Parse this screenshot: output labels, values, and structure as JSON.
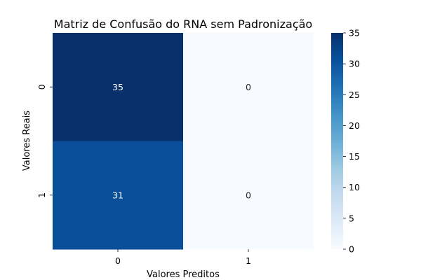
{
  "chart_data": {
    "type": "heatmap",
    "title": "Matriz de Confusão do RNA sem Padronização",
    "xlabel": "Valores Preditos",
    "ylabel": "Valores Reais",
    "x_categories": [
      "0",
      "1"
    ],
    "y_categories": [
      "0",
      "1"
    ],
    "values": [
      [
        35,
        0
      ],
      [
        31,
        0
      ]
    ],
    "annotations": [
      [
        "35",
        "0"
      ],
      [
        "31",
        "0"
      ]
    ],
    "colormap": "Blues",
    "colorbar": {
      "min": 0,
      "max": 35,
      "ticks": [
        0,
        5,
        10,
        15,
        20,
        25,
        30,
        35
      ]
    },
    "grid": false
  }
}
